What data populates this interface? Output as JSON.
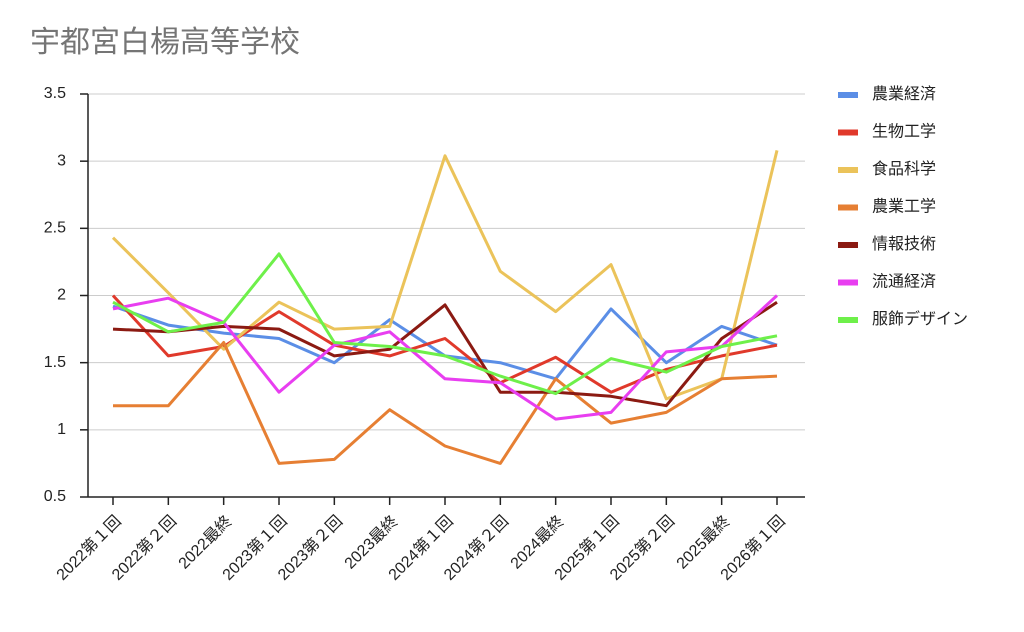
{
  "chart_data": {
    "type": "line",
    "title": "宇都宮白楊高等学校",
    "categories": [
      "2022第１回",
      "2022第２回",
      "2022最終",
      "2023第１回",
      "2023第２回",
      "2023最終",
      "2024第１回",
      "2024第２回",
      "2024最終",
      "2025第１回",
      "2025第２回",
      "2025最終",
      "2026第１回"
    ],
    "series": [
      {
        "name": "農業経済",
        "color": "#5b8ee6",
        "values": [
          1.92,
          1.78,
          1.72,
          1.68,
          1.5,
          1.82,
          1.55,
          1.5,
          1.38,
          1.9,
          1.5,
          1.77,
          1.63
        ]
      },
      {
        "name": "生物工学",
        "color": "#e0392b",
        "values": [
          2.0,
          1.55,
          1.62,
          1.88,
          1.63,
          1.55,
          1.68,
          1.35,
          1.54,
          1.28,
          1.45,
          1.55,
          1.63
        ]
      },
      {
        "name": "食品科学",
        "color": "#ebc35a",
        "values": [
          2.43,
          2.02,
          1.6,
          1.95,
          1.75,
          1.77,
          3.04,
          2.18,
          1.88,
          2.23,
          1.23,
          1.38,
          3.08
        ]
      },
      {
        "name": "農業工学",
        "color": "#e67f33",
        "values": [
          1.18,
          1.18,
          1.65,
          0.75,
          0.78,
          1.15,
          0.88,
          0.75,
          1.38,
          1.05,
          1.13,
          1.38,
          1.4
        ]
      },
      {
        "name": "情報技術",
        "color": "#8b1a12",
        "values": [
          1.75,
          1.73,
          1.77,
          1.75,
          1.55,
          1.6,
          1.93,
          1.28,
          1.28,
          1.25,
          1.18,
          1.68,
          1.95
        ]
      },
      {
        "name": "流通経済",
        "color": "#e83ef0",
        "values": [
          1.9,
          1.98,
          1.8,
          1.28,
          1.63,
          1.73,
          1.38,
          1.35,
          1.08,
          1.13,
          1.58,
          1.62,
          2.0
        ]
      },
      {
        "name": "服飾デザイン",
        "color": "#6ef04a",
        "values": [
          1.95,
          1.73,
          1.8,
          2.31,
          1.65,
          1.62,
          1.55,
          1.4,
          1.27,
          1.53,
          1.43,
          1.62,
          1.7
        ]
      }
    ],
    "ylim": [
      0.5,
      3.5
    ],
    "yticks": [
      0.5,
      1,
      1.5,
      2,
      2.5,
      3,
      3.5
    ],
    "grid": true,
    "legend": "right"
  }
}
